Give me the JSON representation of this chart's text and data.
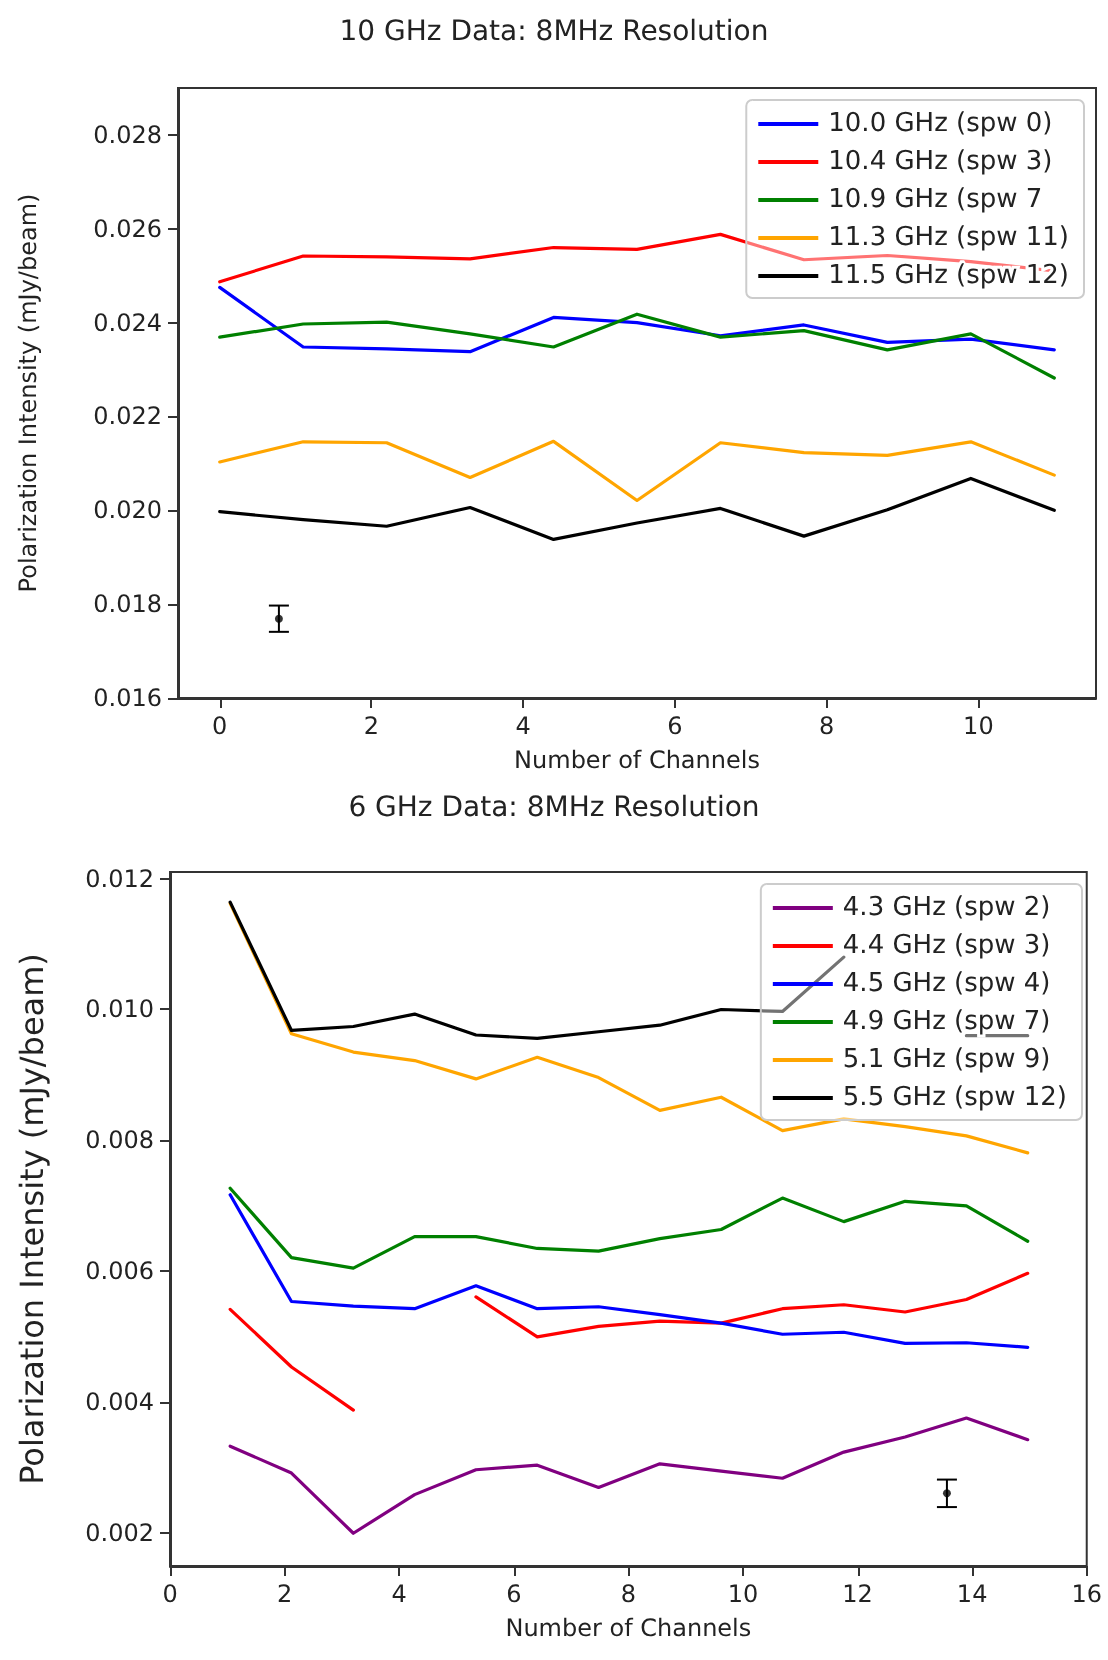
{
  "chart_data": [
    {
      "type": "line",
      "title": "10 GHz Data: 8MHz Resolution",
      "xlabel": "Number of Channels",
      "ylabel": "Polarization Intensity (mJy/beam)",
      "x": [
        0,
        1.1,
        2.2,
        3.3,
        4.4,
        5.5,
        6.6,
        7.7,
        8.8,
        9.9,
        11
      ],
      "series": [
        {
          "name": "10.0 GHz (spw 0)",
          "color": "#0000ff",
          "values": [
            0.02475,
            0.02348,
            0.02344,
            0.02338,
            0.02411,
            0.024,
            0.02372,
            0.02395,
            0.02358,
            0.02365,
            0.02342
          ]
        },
        {
          "name": "10.4 GHz (spw 3)",
          "color": "#ff0000",
          "values": [
            0.02487,
            0.02542,
            0.0254,
            0.02536,
            0.0256,
            0.02556,
            0.02588,
            0.02534,
            0.02543,
            0.0253,
            0.0251
          ]
        },
        {
          "name": "10.9 GHz (spw 7",
          "color": "#008000",
          "values": [
            0.02369,
            0.02397,
            0.02401,
            0.02376,
            0.02348,
            0.02418,
            0.02369,
            0.02383,
            0.02342,
            0.02376,
            0.02282
          ]
        },
        {
          "name": "11.3 GHz (spw 11)",
          "color": "#ffa500",
          "values": [
            0.02103,
            0.02146,
            0.02144,
            0.0207,
            0.02147,
            0.02021,
            0.02144,
            0.02123,
            0.02117,
            0.02146,
            0.02075
          ]
        },
        {
          "name": "11.5 GHz (spw 12)",
          "color": "#000000",
          "values": [
            0.01997,
            0.0198,
            0.01966,
            0.02006,
            0.01938,
            0.01973,
            0.02004,
            0.01945,
            0.02001,
            0.02068,
            0.02
          ]
        },
        {
          "type": "scatter",
          "marker": "circle",
          "color": "#000000",
          "x": [
            0.78
          ],
          "values": [
            0.01769
          ],
          "errors": [
            0.00028
          ]
        }
      ],
      "xlim": [
        -0.55,
        11.55
      ],
      "xticks": [
        0,
        2,
        4,
        6,
        8,
        10
      ],
      "ylim": [
        0.016,
        0.029
      ],
      "yticks": [
        {
          "value": 0.016,
          "label": "0.016"
        },
        {
          "value": 0.018,
          "label": "0.018"
        },
        {
          "value": 0.02,
          "label": "0.020"
        },
        {
          "value": 0.022,
          "label": "0.022"
        },
        {
          "value": 0.024,
          "label": "0.024"
        },
        {
          "value": 0.026,
          "label": "0.026"
        },
        {
          "value": 0.028,
          "label": "0.028"
        }
      ],
      "grid": false,
      "legend": "top right",
      "marker": "none",
      "line_style": "solid"
    },
    {
      "type": "line",
      "title": "6 GHz Data: 8MHz Resolution",
      "xlabel": "Number of Channels",
      "ylabel": "Polarization Intensity (mJy/beam)",
      "x": [
        1.05,
        2.12,
        3.2,
        4.27,
        5.34,
        6.41,
        7.48,
        8.55,
        9.62,
        10.69,
        11.76,
        12.83,
        13.9,
        14.97
      ],
      "series": [
        {
          "name": "4.3 GHz (spw 2)",
          "color": "#800080",
          "values": [
            0.00333,
            0.00292,
            0.002,
            0.00259,
            0.00297,
            0.00304,
            0.0027,
            0.00306,
            0.00295,
            0.00284,
            0.00324,
            0.00347,
            0.00376,
            0.00343
          ]
        },
        {
          "name": "4.4 GHz (spw 3)",
          "color": "#ff0000",
          "values": [
            0.00542,
            0.00454,
            0.00388,
            null,
            0.00561,
            0.005,
            0.00516,
            0.00524,
            0.00521,
            0.00543,
            0.00549,
            0.00538,
            0.00557,
            0.00597
          ]
        },
        {
          "name": "4.5 GHz (spw 4)",
          "color": "#0000ff",
          "values": [
            0.00717,
            0.00554,
            0.00547,
            0.00543,
            0.00578,
            0.00543,
            0.00546,
            0.00534,
            0.00521,
            0.00504,
            0.00507,
            0.0049,
            0.00491,
            0.00484
          ]
        },
        {
          "name": "4.9 GHz (spw 7)",
          "color": "#008000",
          "values": [
            0.00727,
            0.00621,
            0.00605,
            0.00653,
            0.00653,
            0.00635,
            0.00631,
            0.0065,
            0.00664,
            0.00712,
            0.00676,
            0.00707,
            0.007,
            0.00646
          ]
        },
        {
          "name": "5.1 GHz (spw 9)",
          "color": "#ffa500",
          "values": [
            0.01162,
            0.00963,
            0.00935,
            0.00922,
            0.00894,
            0.00927,
            0.00896,
            0.00846,
            0.00866,
            0.00815,
            0.00833,
            0.00821,
            0.00807,
            0.00781
          ]
        },
        {
          "name": "5.5 GHz (spw 12)",
          "color": "#000000",
          "values": [
            0.01164,
            0.00968,
            0.00974,
            0.00993,
            0.00961,
            0.00956,
            0.00966,
            0.00976,
            0.01,
            0.00997,
            0.0108,
            null,
            0.0096,
            0.0096
          ]
        },
        {
          "type": "scatter",
          "marker": "circle",
          "color": "#000000",
          "x": [
            13.56
          ],
          "values": [
            0.00261
          ],
          "errors": [
            0.00021
          ]
        }
      ],
      "xlim": [
        0,
        16
      ],
      "xticks": [
        0,
        2,
        4,
        6,
        8,
        10,
        12,
        14,
        16
      ],
      "ylim": [
        0.0015,
        0.0121
      ],
      "yticks": [
        {
          "value": 0.002,
          "label": "0.002"
        },
        {
          "value": 0.004,
          "label": "0.004"
        },
        {
          "value": 0.006,
          "label": "0.006"
        },
        {
          "value": 0.008,
          "label": "0.008"
        },
        {
          "value": 0.01,
          "label": "0.010"
        },
        {
          "value": 0.012,
          "label": "0.012"
        }
      ],
      "grid": false,
      "legend": "top right",
      "marker": "none",
      "line_style": "solid"
    }
  ]
}
